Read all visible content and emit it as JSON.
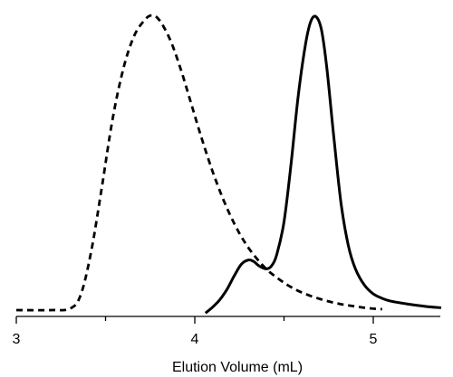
{
  "chart_data": {
    "type": "line",
    "title": "",
    "xlabel": "Elution Volume (mL)",
    "ylabel": "",
    "xlim": [
      3.0,
      5.4
    ],
    "ylim": [
      0,
      1.0
    ],
    "x_ticks": [
      {
        "value": 3,
        "label": "3"
      },
      {
        "value": 4,
        "label": "4"
      },
      {
        "value": 5,
        "label": "5"
      }
    ],
    "x_minor_ticks": [
      3.5,
      4.5
    ],
    "grid": false,
    "legend": "none",
    "series": [
      {
        "style": "dashed",
        "color": "#000000",
        "x": [
          3.0,
          3.2,
          3.3,
          3.36,
          3.42,
          3.48,
          3.54,
          3.6,
          3.66,
          3.72,
          3.76,
          3.8,
          3.86,
          3.92,
          3.98,
          4.04,
          4.1,
          4.16,
          4.22,
          4.28,
          4.34,
          4.4,
          4.46,
          4.52,
          4.58,
          4.64,
          4.7,
          4.76,
          4.82,
          4.88,
          4.94,
          5.0,
          5.05
        ],
        "y": [
          0.0,
          0.0,
          0.005,
          0.05,
          0.2,
          0.42,
          0.65,
          0.82,
          0.93,
          0.985,
          1.0,
          0.985,
          0.92,
          0.82,
          0.7,
          0.58,
          0.47,
          0.375,
          0.295,
          0.23,
          0.18,
          0.14,
          0.11,
          0.085,
          0.065,
          0.05,
          0.038,
          0.028,
          0.02,
          0.014,
          0.009,
          0.005,
          0.003
        ]
      },
      {
        "style": "solid",
        "color": "#000000",
        "x": [
          4.06,
          4.1,
          4.14,
          4.18,
          4.22,
          4.26,
          4.3,
          4.33,
          4.36,
          4.4,
          4.43,
          4.46,
          4.5,
          4.54,
          4.58,
          4.62,
          4.65,
          4.68,
          4.71,
          4.74,
          4.78,
          4.82,
          4.86,
          4.9,
          4.95,
          5.0,
          5.05,
          5.1,
          5.2,
          5.3,
          5.38
        ],
        "y": [
          -0.01,
          0.01,
          0.035,
          0.07,
          0.115,
          0.155,
          0.17,
          0.165,
          0.15,
          0.14,
          0.15,
          0.19,
          0.3,
          0.5,
          0.73,
          0.9,
          0.98,
          0.995,
          0.95,
          0.82,
          0.58,
          0.36,
          0.22,
          0.14,
          0.085,
          0.055,
          0.04,
          0.03,
          0.02,
          0.012,
          0.008
        ]
      }
    ]
  }
}
